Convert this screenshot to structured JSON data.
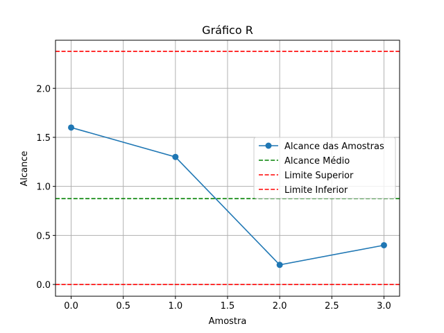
{
  "chart_data": {
    "type": "line",
    "title": "Gráfico R",
    "xlabel": "Amostra",
    "ylabel": "Alcance",
    "xlim": [
      -0.15,
      3.15
    ],
    "ylim": [
      -0.12,
      2.49
    ],
    "xticks": [
      0.0,
      0.5,
      1.0,
      1.5,
      2.0,
      2.5,
      3.0
    ],
    "xtick_labels": [
      "0.0",
      "0.5",
      "1.0",
      "1.5",
      "2.0",
      "2.5",
      "3.0"
    ],
    "yticks": [
      0.0,
      0.5,
      1.0,
      1.5,
      2.0
    ],
    "ytick_labels": [
      "0.0",
      "0.5",
      "1.0",
      "1.5",
      "2.0"
    ],
    "grid": true,
    "legend_position": "center-right",
    "series": [
      {
        "name": "Alcance das Amostras",
        "kind": "line-marker",
        "color": "#1f77b4",
        "x": [
          0,
          1,
          2,
          3
        ],
        "y": [
          1.6,
          1.3,
          0.2,
          0.4
        ]
      },
      {
        "name": "Alcance Médio",
        "kind": "hline",
        "color": "#008000",
        "y": 0.875
      },
      {
        "name": "Limite Superior",
        "kind": "hline",
        "color": "#ff0000",
        "y": 2.3765
      },
      {
        "name": "Limite Inferior",
        "kind": "hline",
        "color": "#ff0000",
        "y": 0.0
      }
    ]
  }
}
